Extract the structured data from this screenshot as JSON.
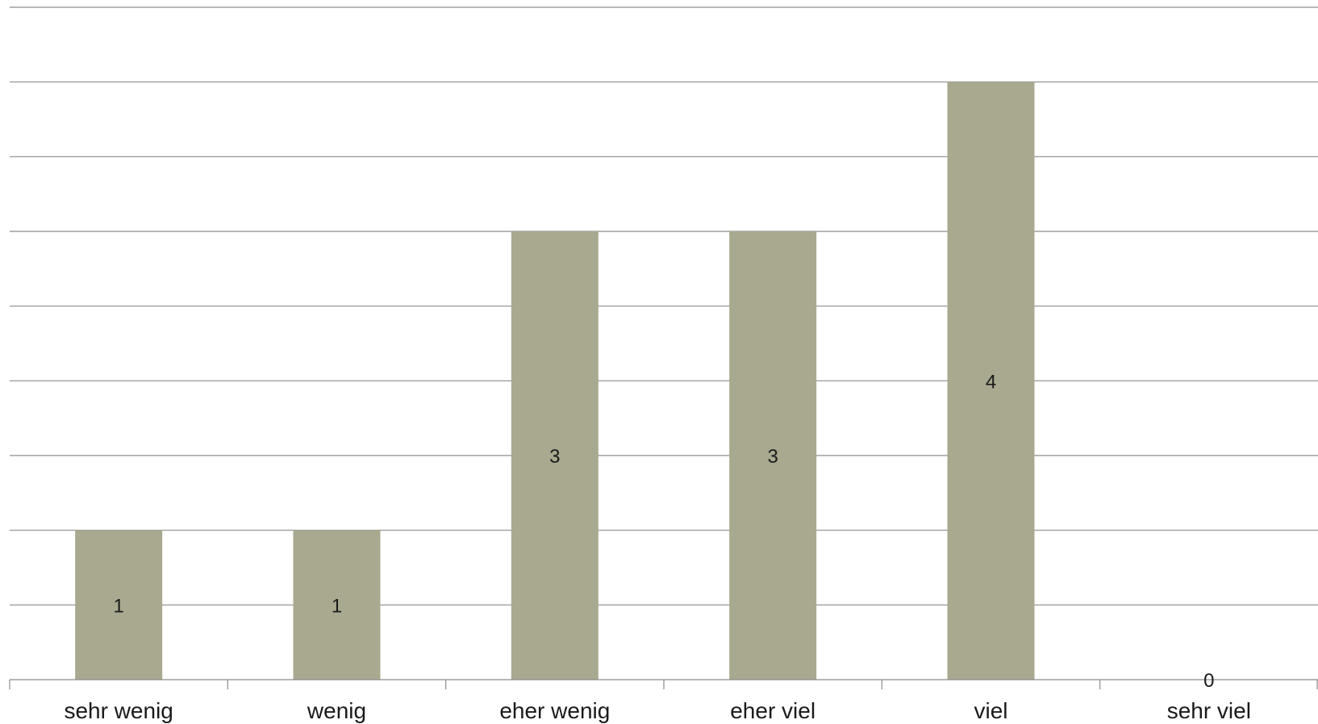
{
  "chart_data": {
    "type": "bar",
    "categories": [
      "sehr wenig",
      "wenig",
      "eher wenig",
      "eher viel",
      "viel",
      "sehr viel"
    ],
    "values": [
      1,
      1,
      3,
      3,
      4,
      0
    ],
    "data_labels": [
      "1",
      "1",
      "3",
      "3",
      "4",
      "0"
    ],
    "ylim": [
      0,
      4.5
    ],
    "gridline_step": 0.5,
    "grid": true,
    "bar_color": "#a9a98f",
    "gridline_color": "#8c8c8c"
  }
}
